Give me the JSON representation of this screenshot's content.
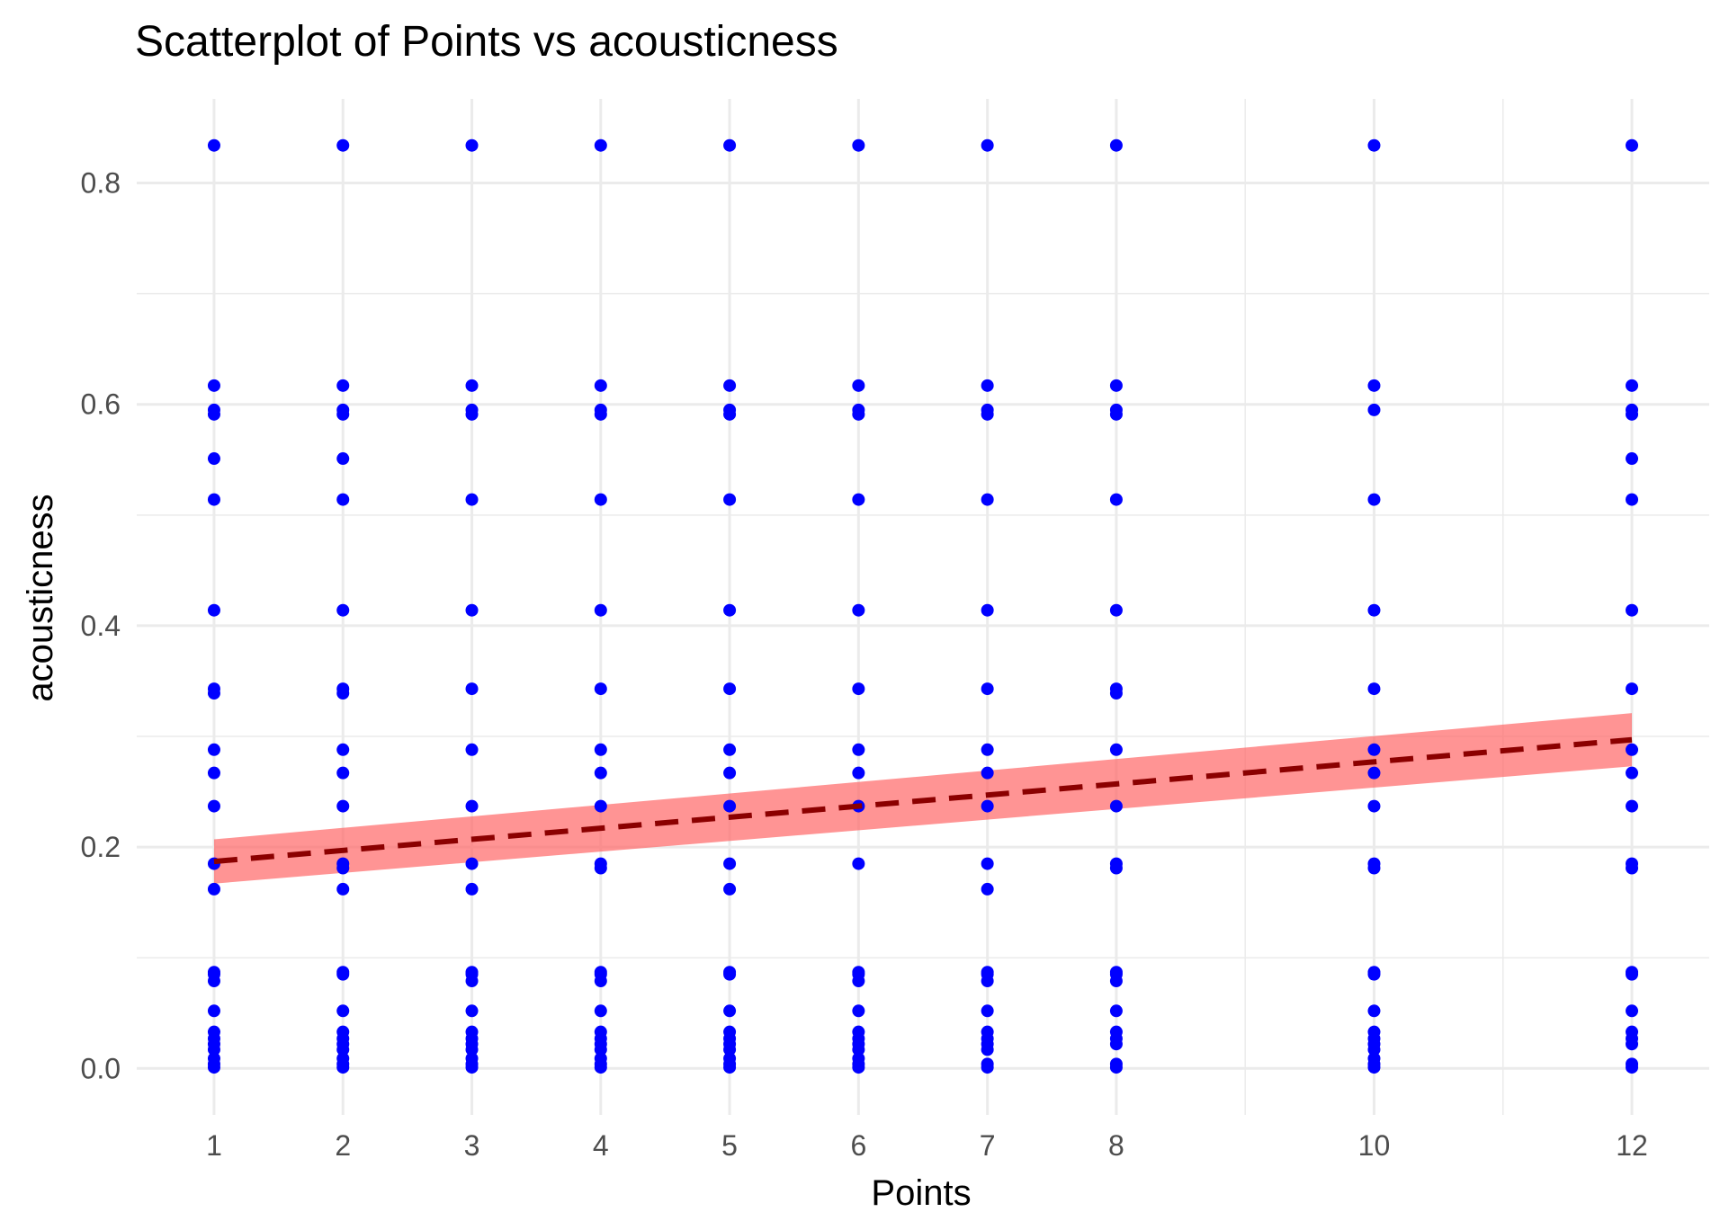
{
  "chart_data": {
    "type": "scatter",
    "title": "Scatterplot of Points vs  acousticness",
    "xlabel": "Points",
    "ylabel": "acousticness",
    "x_ticks": [
      1,
      2,
      3,
      4,
      5,
      6,
      7,
      8,
      10,
      12
    ],
    "y_ticks": [
      "0.0",
      "0.2",
      "0.4",
      "0.6",
      "0.8"
    ],
    "xlim": [
      0.4,
      12.6
    ],
    "ylim": [
      -0.042,
      0.876
    ],
    "grid": true,
    "legend": "none",
    "point_color": "#0000ff",
    "y_levels": [
      0.834,
      0.617,
      0.595,
      0.591,
      0.551,
      0.514,
      0.414,
      0.343,
      0.339,
      0.288,
      0.267,
      0.237,
      0.185,
      0.181,
      0.162,
      0.087,
      0.085,
      0.079,
      0.052,
      0.033,
      0.027,
      0.022,
      0.017,
      0.009,
      0.004,
      0.001
    ],
    "series": [
      {
        "x": 1,
        "y": [
          0.834,
          0.617,
          0.595,
          0.591,
          0.551,
          0.514,
          0.414,
          0.343,
          0.339,
          0.288,
          0.267,
          0.237,
          0.185,
          0.162,
          0.087,
          0.085,
          0.079,
          0.052,
          0.033,
          0.027,
          0.022,
          0.017,
          0.009,
          0.004,
          0.001
        ]
      },
      {
        "x": 2,
        "y": [
          0.834,
          0.617,
          0.595,
          0.591,
          0.551,
          0.514,
          0.414,
          0.343,
          0.339,
          0.288,
          0.267,
          0.237,
          0.185,
          0.181,
          0.162,
          0.087,
          0.085,
          0.052,
          0.033,
          0.027,
          0.022,
          0.017,
          0.009,
          0.004,
          0.001
        ]
      },
      {
        "x": 3,
        "y": [
          0.834,
          0.617,
          0.595,
          0.591,
          0.514,
          0.414,
          0.343,
          0.288,
          0.237,
          0.185,
          0.162,
          0.087,
          0.085,
          0.079,
          0.052,
          0.033,
          0.027,
          0.022,
          0.017,
          0.009,
          0.004,
          0.001
        ]
      },
      {
        "x": 4,
        "y": [
          0.834,
          0.617,
          0.595,
          0.591,
          0.514,
          0.414,
          0.343,
          0.288,
          0.267,
          0.237,
          0.185,
          0.181,
          0.087,
          0.085,
          0.079,
          0.052,
          0.033,
          0.027,
          0.022,
          0.017,
          0.009,
          0.004,
          0.001
        ]
      },
      {
        "x": 5,
        "y": [
          0.834,
          0.617,
          0.595,
          0.591,
          0.514,
          0.414,
          0.343,
          0.288,
          0.267,
          0.237,
          0.185,
          0.162,
          0.087,
          0.085,
          0.052,
          0.033,
          0.027,
          0.022,
          0.017,
          0.009,
          0.004,
          0.001
        ]
      },
      {
        "x": 6,
        "y": [
          0.834,
          0.617,
          0.595,
          0.591,
          0.514,
          0.414,
          0.343,
          0.288,
          0.267,
          0.237,
          0.185,
          0.087,
          0.085,
          0.079,
          0.052,
          0.033,
          0.027,
          0.022,
          0.017,
          0.009,
          0.004,
          0.001
        ]
      },
      {
        "x": 7,
        "y": [
          0.834,
          0.617,
          0.595,
          0.591,
          0.514,
          0.414,
          0.343,
          0.288,
          0.267,
          0.237,
          0.185,
          0.162,
          0.087,
          0.085,
          0.079,
          0.052,
          0.033,
          0.027,
          0.022,
          0.017,
          0.004,
          0.001
        ]
      },
      {
        "x": 8,
        "y": [
          0.834,
          0.617,
          0.595,
          0.591,
          0.514,
          0.414,
          0.343,
          0.339,
          0.288,
          0.237,
          0.185,
          0.181,
          0.087,
          0.085,
          0.079,
          0.052,
          0.033,
          0.027,
          0.022,
          0.004,
          0.001
        ]
      },
      {
        "x": 10,
        "y": [
          0.834,
          0.617,
          0.595,
          0.514,
          0.414,
          0.343,
          0.288,
          0.267,
          0.237,
          0.185,
          0.181,
          0.087,
          0.085,
          0.052,
          0.033,
          0.027,
          0.022,
          0.017,
          0.009,
          0.004,
          0.001
        ]
      },
      {
        "x": 12,
        "y": [
          0.834,
          0.617,
          0.595,
          0.591,
          0.551,
          0.514,
          0.414,
          0.343,
          0.288,
          0.267,
          0.237,
          0.185,
          0.181,
          0.087,
          0.085,
          0.052,
          0.033,
          0.027,
          0.022,
          0.004,
          0.001
        ]
      }
    ],
    "trend_line": {
      "style": "dashed",
      "color": "#8b0000",
      "ribbon_color": "#ff6666",
      "x": [
        1,
        12
      ],
      "y": [
        0.187,
        0.297
      ],
      "ci_lower": [
        0.167,
        0.273
      ],
      "ci_upper": [
        0.207,
        0.321
      ]
    }
  }
}
